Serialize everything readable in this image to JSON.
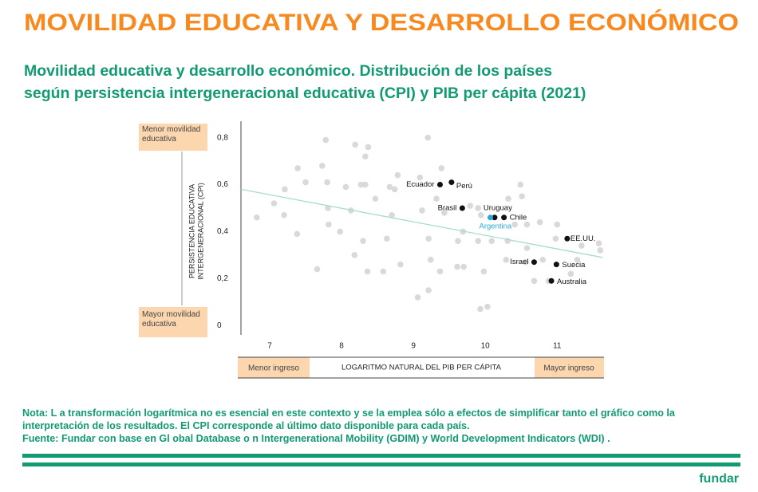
{
  "chart_data": {
    "type": "scatter",
    "title": "MOVILIDAD EDUCATIVA Y DESARROLLO ECONÓMICO",
    "subtitle_lines": [
      "Movilidad educativa y desarrollo económico. Distribución de los países",
      "según persistencia intergeneracional educativa (CPI) y PIB per cápita (2021)"
    ],
    "ylabel_lines": [
      "PERSISTENCIA EDUCATIVA",
      "INTERGENERACIONAL (CPI)"
    ],
    "xlabel": "LOGARITMO NATURAL DEL PIB PER CÁPITA",
    "y_top_note": "Menor movilidad educativa",
    "y_bottom_note": "Mayor movilidad educativa",
    "x_left_note": "Menor ingreso",
    "x_right_note": "Mayor ingreso",
    "xlim": [
      6.6,
      11.63
    ],
    "ylim": [
      -0.04,
      0.87
    ],
    "xticks": [
      7,
      8,
      9,
      10,
      11
    ],
    "yticks": [
      0,
      {
        "value": 0.2,
        "label": "0,2"
      },
      {
        "value": 0.4,
        "label": "0,4"
      },
      {
        "value": 0.6,
        "label": "0,6"
      },
      {
        "value": 0.8,
        "label": "0,8"
      }
    ],
    "trend_line": {
      "color": "#a6dccb",
      "x": [
        6.6,
        11.63
      ],
      "y": [
        0.58,
        0.29
      ]
    },
    "background": {
      "color": "#d9d9d9",
      "x": [
        7.78,
        8.19,
        8.37,
        9.2,
        8.33,
        7.39,
        7.73,
        9.39,
        8.78,
        9.09,
        7.8,
        7.5,
        8.06,
        8.27,
        8.33,
        8.67,
        8.74,
        7.21,
        9.32,
        8.47,
        7.06,
        7.81,
        8.13,
        9.12,
        9.43,
        9.9,
        9.79,
        10.32,
        10.49,
        10.51,
        6.82,
        7.2,
        8.7,
        9.94,
        10.41,
        10.58,
        10.76,
        11,
        7.82,
        7.98,
        7.38,
        8.3,
        8.63,
        9.21,
        9.69,
        9.62,
        9.9,
        10.09,
        10.31,
        10.98,
        10.58,
        11.58,
        11.6,
        8.18,
        8.82,
        9.24,
        9.61,
        9.7,
        10.29,
        10.56,
        10.8,
        11.28,
        7.66,
        8.36,
        8.58,
        9.37,
        9.98,
        11.19,
        10.68,
        10.88,
        9.21,
        9.06,
        9.93,
        10.03,
        11.34
      ],
      "y": [
        0.79,
        0.77,
        0.76,
        0.8,
        0.72,
        0.67,
        0.68,
        0.67,
        0.64,
        0.63,
        0.61,
        0.61,
        0.59,
        0.6,
        0.6,
        0.59,
        0.58,
        0.58,
        0.54,
        0.54,
        0.52,
        0.5,
        0.49,
        0.49,
        0.48,
        0.5,
        0.51,
        0.54,
        0.6,
        0.55,
        0.46,
        0.47,
        0.47,
        0.47,
        0.43,
        0.43,
        0.44,
        0.43,
        0.43,
        0.4,
        0.39,
        0.36,
        0.37,
        0.37,
        0.4,
        0.36,
        0.36,
        0.36,
        0.36,
        0.37,
        0.33,
        0.35,
        0.32,
        0.3,
        0.26,
        0.28,
        0.25,
        0.25,
        0.28,
        0.27,
        0.28,
        0.28,
        0.24,
        0.23,
        0.23,
        0.23,
        0.23,
        0.22,
        0.19,
        0.19,
        0.15,
        0.12,
        0.07,
        0.08,
        0.34
      ]
    },
    "highlighted": [
      {
        "label": "Ecuador",
        "x": 9.37,
        "y": 0.6,
        "color": "#111111"
      },
      {
        "label": "Perú",
        "x": 9.53,
        "y": 0.61,
        "color": "#111111"
      },
      {
        "label": "Brasil",
        "x": 9.68,
        "y": 0.5,
        "color": "#111111"
      },
      {
        "label": "Uruguay",
        "x": 10.13,
        "y": 0.46,
        "color": "#111111"
      },
      {
        "label": "Argentina",
        "x": 10.07,
        "y": 0.46,
        "color": "#2aa9d8"
      },
      {
        "label": "Chile",
        "x": 10.26,
        "y": 0.46,
        "color": "#111111"
      },
      {
        "label": "EE.UU.",
        "x": 11.14,
        "y": 0.37,
        "color": "#111111"
      },
      {
        "label": "Israel",
        "x": 10.68,
        "y": 0.27,
        "color": "#111111"
      },
      {
        "label": "Suecia",
        "x": 10.99,
        "y": 0.26,
        "color": "#111111"
      },
      {
        "label": "Australia",
        "x": 10.92,
        "y": 0.19,
        "color": "#111111"
      }
    ]
  },
  "note": "Nota: L a transformación logarítmica no es esencial en este contexto y se la emplea sólo a efectos de simplificar tanto el gráfico como la interpretación de los resultados. El CPI corresponde al último dato disponible para cada país.",
  "source": "Fuente: Fundar con base en Gl obal Database o n Intergenerational Mobility (GDIM) y World Development Indicators (WDI) .",
  "brand": "fundar"
}
